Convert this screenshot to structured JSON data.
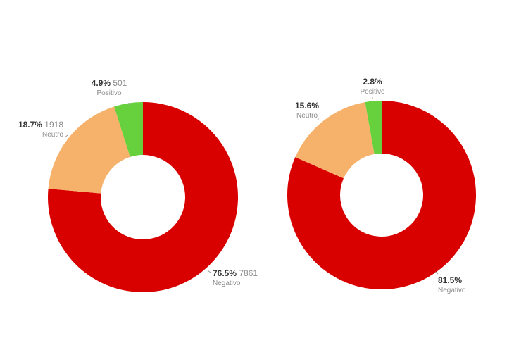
{
  "chart_data": [
    {
      "type": "pie",
      "donut": true,
      "categories": [
        "Negativo",
        "Neutro",
        "Positivo"
      ],
      "values": [
        76.5,
        18.7,
        4.9
      ],
      "value_labels": [
        "76.5%",
        "18.7%",
        "4.9%"
      ],
      "counts": [
        "7861",
        "1918",
        "501"
      ],
      "colors": [
        "#d90000",
        "#f6b26b",
        "#66d13c"
      ]
    },
    {
      "type": "pie",
      "donut": true,
      "categories": [
        "Negativo",
        "Neutro",
        "Positivo"
      ],
      "values": [
        81.5,
        15.6,
        2.8
      ],
      "value_labels": [
        "81.5%",
        "15.6%",
        "2.8%"
      ],
      "counts": [
        "",
        "",
        ""
      ],
      "colors": [
        "#d90000",
        "#f6b26b",
        "#66d13c"
      ]
    }
  ]
}
